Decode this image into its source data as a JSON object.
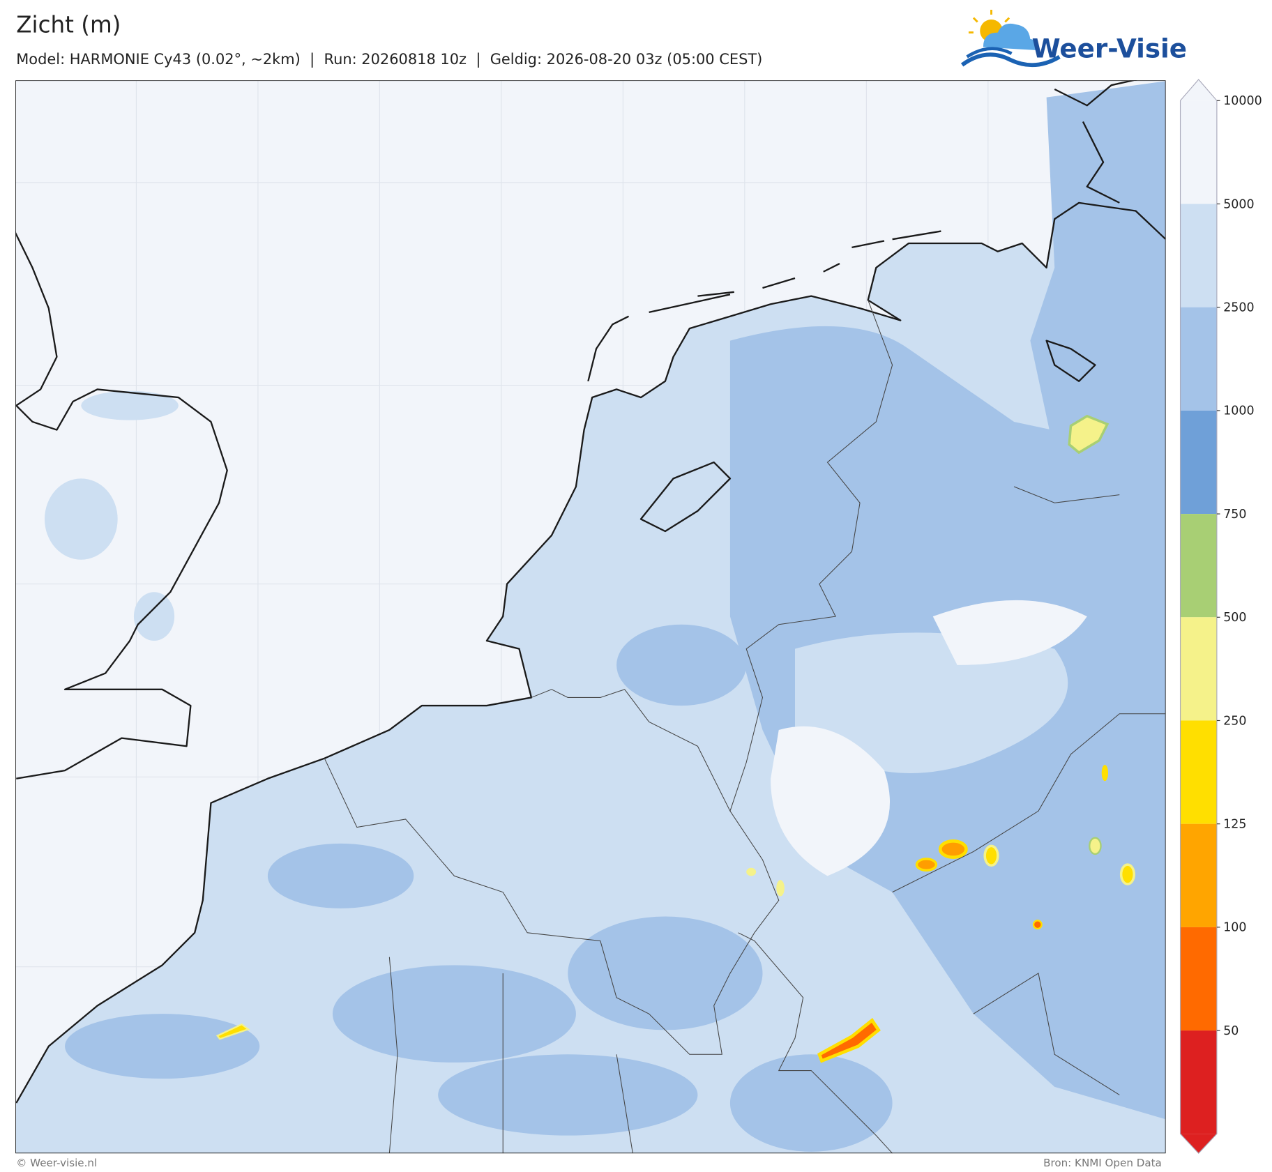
{
  "header": {
    "title": "Zicht (m)",
    "subtitle": "Model: HARMONIE Cy43 (0.02°, ~2km)  |  Run: 20260818 10z  |  Geldig: 2026-08-20 03z (05:00 CEST)"
  },
  "logo": {
    "text": "Weer-Visie"
  },
  "legend": {
    "ticks": [
      10000,
      5000,
      2500,
      1000,
      750,
      500,
      250,
      125,
      100,
      50
    ],
    "colors": [
      "#f2f5fa",
      "#f2f5fa",
      "#cddff2",
      "#a4c3e8",
      "#6fa0d8",
      "#a8cf74",
      "#f5f28a",
      "#ffdf00",
      "#ffa500",
      "#ff6a00",
      "#dd2020"
    ]
  },
  "footer": {
    "left": "© Weer-visie.nl",
    "right": "Bron: KNMI Open Data"
  }
}
